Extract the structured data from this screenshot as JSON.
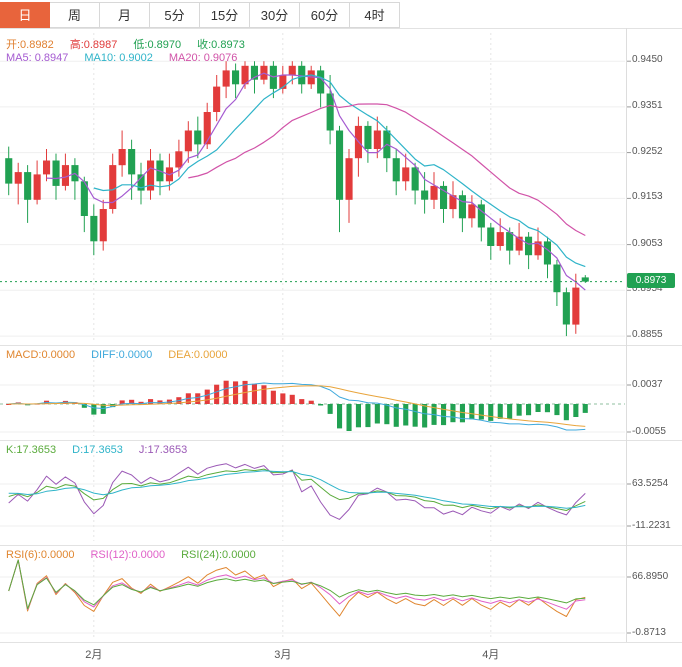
{
  "tabs": {
    "items": [
      {
        "label": "日",
        "active": true
      },
      {
        "label": "周",
        "active": false
      },
      {
        "label": "月",
        "active": false
      },
      {
        "label": "5分",
        "active": false
      },
      {
        "label": "15分",
        "active": false
      },
      {
        "label": "30分",
        "active": false
      },
      {
        "label": "60分",
        "active": false
      },
      {
        "label": "4时",
        "active": false
      }
    ]
  },
  "main_chart": {
    "ohlc": [
      {
        "text": "开:0.8982",
        "color": "#e08031"
      },
      {
        "text": "高:0.8987",
        "color": "#e03b3b"
      },
      {
        "text": "低:0.8970",
        "color": "#21a152"
      },
      {
        "text": "收:0.8973",
        "color": "#21a152"
      }
    ],
    "ma": [
      {
        "text": "MA5: 0.8947",
        "color": "#a55bd1"
      },
      {
        "text": "MA10: 0.9002",
        "color": "#2fb4c9"
      },
      {
        "text": "MA20: 0.9076",
        "color": "#d153a8"
      }
    ],
    "y_labels": [
      "0.9450",
      "0.9351",
      "0.9252",
      "0.9153",
      "0.9053",
      "0.8954",
      "0.8855"
    ],
    "current_price": 0.8973,
    "current_price_label": "0.8973",
    "badge_color": "#21a152"
  },
  "macd_panel": {
    "header": [
      {
        "text": "MACD:0.0000",
        "color": "#e0862f"
      },
      {
        "text": "DIFF:0.0000",
        "color": "#3fa9dc"
      },
      {
        "text": "DEA:0.0000",
        "color": "#e8a43b"
      }
    ],
    "y_labels": [
      "0.0037",
      "-0.0055"
    ],
    "diff_color": "#3fa9dc",
    "dea_color": "#e8a43b"
  },
  "kdj_panel": {
    "header": [
      {
        "text": "K:17.3653",
        "color": "#5aab3c"
      },
      {
        "text": "D:17.3653",
        "color": "#2fb4c9"
      },
      {
        "text": "J:17.3653",
        "color": "#9b59b6"
      }
    ],
    "y_labels": [
      "63.5254",
      "-11.2231"
    ]
  },
  "rsi_panel": {
    "header": [
      {
        "text": "RSI(6):0.0000",
        "color": "#e0862f"
      },
      {
        "text": "RSI(12):0.0000",
        "color": "#e060c8"
      },
      {
        "text": "RSI(24):0.0000",
        "color": "#5aab3c"
      }
    ],
    "y_labels": [
      "66.8950",
      "-0.8713"
    ],
    "periods": [
      6,
      12,
      24
    ]
  },
  "x_axis": {
    "labels": [
      "2月",
      "3月",
      "4月"
    ],
    "tick_indices": [
      9,
      29,
      51
    ]
  },
  "chart_data": {
    "type": "candlestick",
    "timeframe": "日",
    "ohlc_format": [
      "open",
      "high",
      "low",
      "close"
    ],
    "y_range": [
      0.884,
      0.9485
    ],
    "y_tick_values": [
      0.945,
      0.9351,
      0.9252,
      0.9153,
      0.9053,
      0.8954,
      0.8855
    ],
    "up_color": "#e23b3b",
    "down_color": "#21a152",
    "ma_periods": [
      5,
      10,
      20
    ],
    "x_month_ticks": [
      {
        "label": "2月",
        "index": 9
      },
      {
        "label": "3月",
        "index": 29
      },
      {
        "label": "4月",
        "index": 51
      }
    ],
    "candles": [
      [
        0.924,
        0.9265,
        0.916,
        0.9185
      ],
      [
        0.9185,
        0.923,
        0.914,
        0.921
      ],
      [
        0.921,
        0.9225,
        0.91,
        0.915
      ],
      [
        0.915,
        0.9235,
        0.914,
        0.9205
      ],
      [
        0.9205,
        0.926,
        0.919,
        0.9235
      ],
      [
        0.9235,
        0.925,
        0.915,
        0.918
      ],
      [
        0.918,
        0.925,
        0.917,
        0.9225
      ],
      [
        0.9225,
        0.924,
        0.915,
        0.919
      ],
      [
        0.919,
        0.92,
        0.908,
        0.9115
      ],
      [
        0.9115,
        0.914,
        0.903,
        0.906
      ],
      [
        0.906,
        0.915,
        0.904,
        0.913
      ],
      [
        0.913,
        0.925,
        0.912,
        0.9225
      ],
      [
        0.9225,
        0.93,
        0.92,
        0.926
      ],
      [
        0.926,
        0.928,
        0.915,
        0.9205
      ],
      [
        0.9205,
        0.923,
        0.914,
        0.917
      ],
      [
        0.917,
        0.926,
        0.915,
        0.9235
      ],
      [
        0.9235,
        0.925,
        0.916,
        0.919
      ],
      [
        0.919,
        0.925,
        0.917,
        0.922
      ],
      [
        0.922,
        0.928,
        0.92,
        0.9255
      ],
      [
        0.9255,
        0.932,
        0.923,
        0.93
      ],
      [
        0.93,
        0.933,
        0.924,
        0.927
      ],
      [
        0.927,
        0.936,
        0.926,
        0.934
      ],
      [
        0.934,
        0.942,
        0.932,
        0.9395
      ],
      [
        0.9395,
        0.945,
        0.937,
        0.943
      ],
      [
        0.943,
        0.9445,
        0.937,
        0.94
      ],
      [
        0.94,
        0.945,
        0.939,
        0.944
      ],
      [
        0.944,
        0.945,
        0.938,
        0.941
      ],
      [
        0.941,
        0.945,
        0.94,
        0.944
      ],
      [
        0.944,
        0.945,
        0.937,
        0.939
      ],
      [
        0.939,
        0.944,
        0.938,
        0.942
      ],
      [
        0.942,
        0.945,
        0.94,
        0.944
      ],
      [
        0.944,
        0.945,
        0.938,
        0.94
      ],
      [
        0.94,
        0.944,
        0.939,
        0.943
      ],
      [
        0.943,
        0.944,
        0.935,
        0.938
      ],
      [
        0.938,
        0.942,
        0.927,
        0.93
      ],
      [
        0.93,
        0.931,
        0.908,
        0.915
      ],
      [
        0.915,
        0.926,
        0.91,
        0.924
      ],
      [
        0.924,
        0.933,
        0.92,
        0.931
      ],
      [
        0.931,
        0.932,
        0.923,
        0.926
      ],
      [
        0.926,
        0.933,
        0.924,
        0.93
      ],
      [
        0.93,
        0.931,
        0.921,
        0.924
      ],
      [
        0.924,
        0.926,
        0.916,
        0.919
      ],
      [
        0.919,
        0.925,
        0.917,
        0.922
      ],
      [
        0.922,
        0.923,
        0.914,
        0.917
      ],
      [
        0.917,
        0.921,
        0.912,
        0.915
      ],
      [
        0.915,
        0.921,
        0.913,
        0.918
      ],
      [
        0.918,
        0.919,
        0.91,
        0.913
      ],
      [
        0.913,
        0.919,
        0.911,
        0.916
      ],
      [
        0.916,
        0.917,
        0.908,
        0.911
      ],
      [
        0.911,
        0.916,
        0.909,
        0.914
      ],
      [
        0.914,
        0.915,
        0.906,
        0.909
      ],
      [
        0.909,
        0.91,
        0.902,
        0.905
      ],
      [
        0.905,
        0.911,
        0.904,
        0.908
      ],
      [
        0.908,
        0.909,
        0.901,
        0.904
      ],
      [
        0.904,
        0.91,
        0.903,
        0.907
      ],
      [
        0.907,
        0.908,
        0.9,
        0.903
      ],
      [
        0.903,
        0.909,
        0.902,
        0.906
      ],
      [
        0.906,
        0.907,
        0.898,
        0.901
      ],
      [
        0.901,
        0.902,
        0.892,
        0.895
      ],
      [
        0.895,
        0.896,
        0.8855,
        0.888
      ],
      [
        0.888,
        0.899,
        0.886,
        0.896
      ],
      [
        0.8982,
        0.8987,
        0.897,
        0.8973
      ]
    ],
    "indicators": {
      "macd": {
        "fast": 12,
        "slow": 26,
        "signal": 9,
        "latest": {
          "macd": 0.0,
          "diff": 0.0,
          "dea": 0.0
        }
      },
      "kdj": {
        "period": 9,
        "latest": {
          "k": 17.3653,
          "d": 17.3653,
          "j": 17.3653
        }
      },
      "rsi": {
        "periods": [
          6,
          12,
          24
        ],
        "latest": [
          0.0,
          0.0,
          0.0
        ]
      }
    }
  }
}
